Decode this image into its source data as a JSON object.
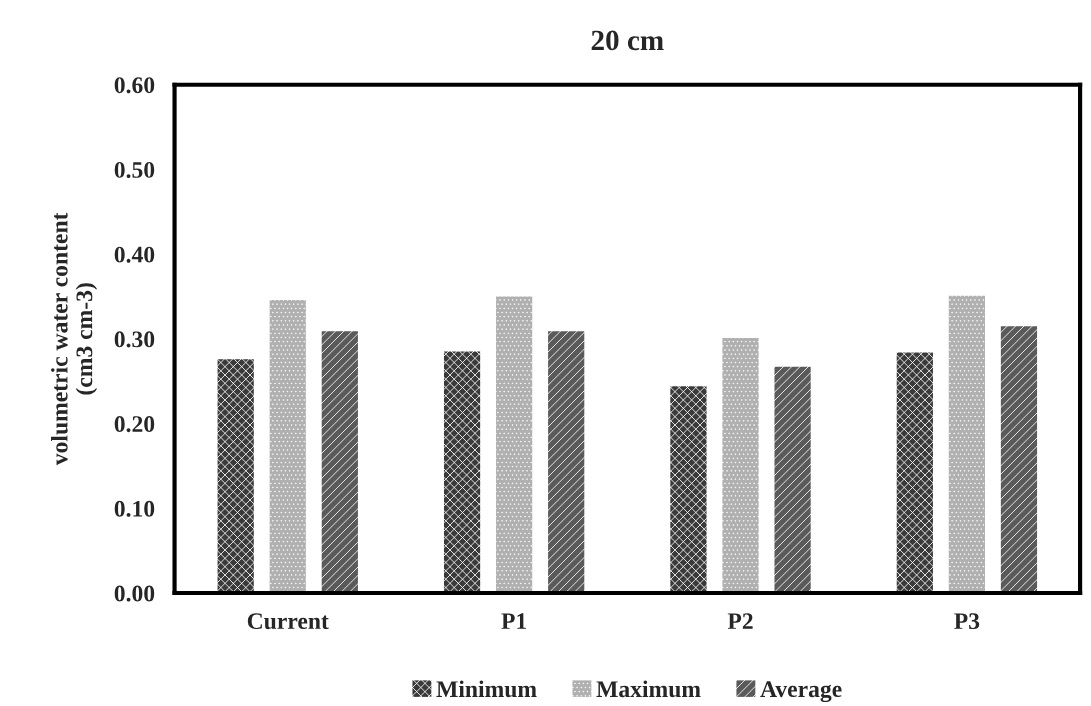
{
  "chart_data": {
    "type": "bar",
    "title": "20 cm",
    "ylabel": "volumetric water content\n(cm3 cm-3)",
    "categories": [
      "Current",
      "P1",
      "P2",
      "P3"
    ],
    "series": [
      {
        "name": "Minimum",
        "color": "#3a3a3a",
        "values": [
          0.276,
          0.285,
          0.244,
          0.284
        ]
      },
      {
        "name": "Maximum",
        "color": "#b0b0b0",
        "values": [
          0.346,
          0.35,
          0.301,
          0.351
        ]
      },
      {
        "name": "Average",
        "color": "#5a5a5a",
        "values": [
          0.309,
          0.309,
          0.267,
          0.315
        ]
      }
    ],
    "ylim": [
      0,
      0.6
    ],
    "yticks": [
      {
        "value": 0,
        "label": "0.00"
      },
      {
        "value": 0.1,
        "label": "0.10"
      },
      {
        "value": 0.2,
        "label": "0.20"
      },
      {
        "value": 0.3,
        "label": "0.30"
      },
      {
        "value": 0.4,
        "label": "0.40"
      },
      {
        "value": 0.5,
        "label": "0.50"
      },
      {
        "value": 0.6,
        "label": "0.60"
      }
    ],
    "grid": false,
    "legend": "bottom"
  }
}
